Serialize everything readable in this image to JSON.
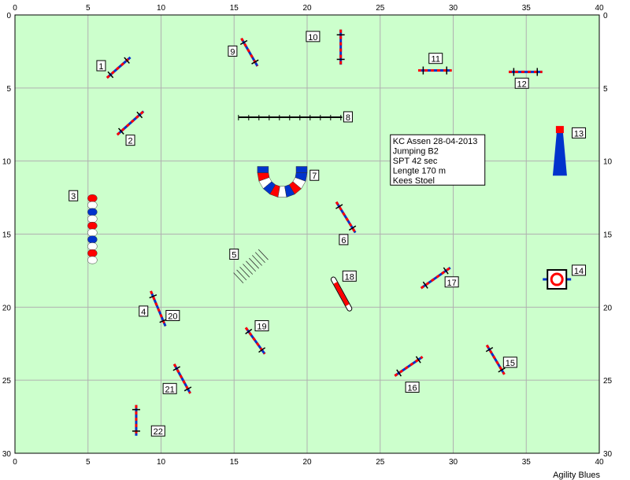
{
  "field": {
    "background": "#ccffcc",
    "grid_color": "#b0b0b0",
    "x_range": [
      0,
      40
    ],
    "y_range": [
      0,
      30
    ],
    "x_ticks": [
      "0",
      "5",
      "10",
      "15",
      "20",
      "25",
      "30",
      "35",
      "40"
    ],
    "y_ticks": [
      "0",
      "5",
      "10",
      "15",
      "20",
      "25",
      "30"
    ]
  },
  "info": {
    "lines": [
      "KC Assen 28-04-2013",
      "Jumping B2",
      "SPT 42 sec",
      "Lengte 170 m",
      "Kees Stoel"
    ]
  },
  "footer": {
    "credit": "Agility Blues"
  },
  "colors": {
    "red": "#ff0000",
    "blue": "#0033cc",
    "dark": "#000000",
    "white": "#ffffff"
  },
  "obstacles": [
    {
      "number": "1",
      "type": "jump",
      "x1": 6.3,
      "y1": 4.3,
      "x2": 7.9,
      "y2": 2.9,
      "lx": 5.9,
      "ly": 3.5
    },
    {
      "number": "2",
      "type": "jump",
      "x1": 7.0,
      "y1": 8.2,
      "x2": 8.8,
      "y2": 6.6,
      "lx": 7.9,
      "ly": 8.6
    },
    {
      "number": "3",
      "type": "tunnel_straight",
      "x1": 5.3,
      "y1": 12.3,
      "x2": 5.3,
      "y2": 17.0,
      "lx": 4.0,
      "ly": 12.4
    },
    {
      "number": "4",
      "type": "jump",
      "x1": 9.3,
      "y1": 18.9,
      "x2": 10.3,
      "y2": 21.3,
      "lx": 8.8,
      "ly": 20.3
    },
    {
      "number": "5",
      "type": "weave",
      "x1": 15.3,
      "y1": 18.0,
      "x2": 17.0,
      "y2": 16.4,
      "lx": 15.0,
      "ly": 16.4
    },
    {
      "number": "6",
      "type": "jump",
      "x1": 22.0,
      "y1": 12.8,
      "x2": 23.3,
      "y2": 14.9,
      "lx": 22.5,
      "ly": 15.4
    },
    {
      "number": "7",
      "type": "tunnel_curved",
      "cx": 18.3,
      "cy": 10.8,
      "r": 1.0,
      "lx": 20.5,
      "ly": 11.0
    },
    {
      "number": "8",
      "type": "dogwalk",
      "x1": 15.3,
      "y1": 7.0,
      "x2": 22.4,
      "y2": 7.0,
      "lx": 22.8,
      "ly": 7.0
    },
    {
      "number": "9",
      "type": "jump",
      "x1": 15.5,
      "y1": 1.6,
      "x2": 16.6,
      "y2": 3.5,
      "lx": 14.9,
      "ly": 2.5
    },
    {
      "number": "10",
      "type": "jump",
      "x1": 22.3,
      "y1": 1.0,
      "x2": 22.3,
      "y2": 3.4,
      "lx": 20.4,
      "ly": 1.5
    },
    {
      "number": "11",
      "type": "jump",
      "x1": 27.6,
      "y1": 3.8,
      "x2": 29.9,
      "y2": 3.8,
      "lx": 28.8,
      "ly": 3.0
    },
    {
      "number": "12",
      "type": "jump",
      "x1": 33.8,
      "y1": 3.9,
      "x2": 36.1,
      "y2": 3.9,
      "lx": 34.7,
      "ly": 4.7
    },
    {
      "number": "13",
      "type": "tire_tower",
      "x1": 37.3,
      "y1": 7.6,
      "x2": 37.3,
      "y2": 11.0,
      "lx": 38.6,
      "ly": 8.1
    },
    {
      "number": "14",
      "type": "table",
      "x1": 37.1,
      "y1": 18.1,
      "x2": 37.1,
      "y2": 18.1,
      "lx": 38.6,
      "ly": 17.5
    },
    {
      "number": "15",
      "type": "jump",
      "x1": 32.3,
      "y1": 22.6,
      "x2": 33.5,
      "y2": 24.6,
      "lx": 33.9,
      "ly": 23.8
    },
    {
      "number": "16",
      "type": "jump",
      "x1": 26.0,
      "y1": 24.7,
      "x2": 27.9,
      "y2": 23.4,
      "lx": 27.2,
      "ly": 25.5
    },
    {
      "number": "17",
      "type": "jump",
      "x1": 27.8,
      "y1": 18.7,
      "x2": 29.8,
      "y2": 17.3,
      "lx": 29.9,
      "ly": 18.3
    },
    {
      "number": "18",
      "type": "tunnel_short",
      "x1": 21.8,
      "y1": 18.1,
      "x2": 22.9,
      "y2": 20.1,
      "lx": 22.9,
      "ly": 17.9
    },
    {
      "number": "19",
      "type": "jump",
      "x1": 15.8,
      "y1": 21.4,
      "x2": 17.1,
      "y2": 23.2,
      "lx": 16.9,
      "ly": 21.3
    },
    {
      "number": "20",
      "type": "jump",
      "x1": 10.3,
      "y1": 20.7,
      "x2": 10.3,
      "y2": 20.7,
      "lx": 10.8,
      "ly": 20.6,
      "hidden_mark": true
    },
    {
      "number": "21",
      "type": "jump",
      "x1": 10.9,
      "y1": 23.9,
      "x2": 12.0,
      "y2": 25.9,
      "lx": 10.6,
      "ly": 25.6
    },
    {
      "number": "22",
      "type": "jump",
      "x1": 8.3,
      "y1": 26.7,
      "x2": 8.3,
      "y2": 28.8,
      "lx": 9.8,
      "ly": 28.5
    }
  ]
}
